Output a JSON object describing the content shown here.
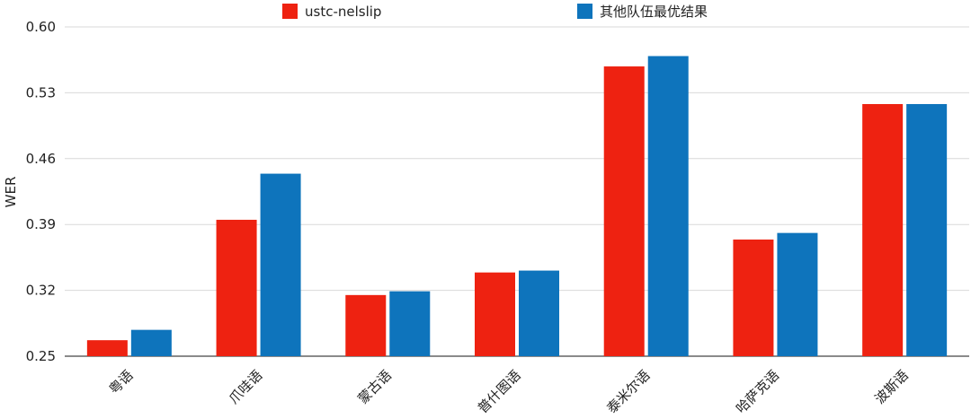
{
  "chart_data": {
    "type": "bar",
    "title": "",
    "xlabel": "",
    "ylabel": "WER",
    "ylim": [
      0.25,
      0.6
    ],
    "yticks": [
      "0.25",
      "0.32",
      "0.39",
      "0.46",
      "0.53",
      "0.60"
    ],
    "grid": true,
    "legend_position": "top",
    "categories": [
      "粤语",
      "爪哇语",
      "蒙古语",
      "普什图语",
      "泰米尔语",
      "哈萨克语",
      "波斯语"
    ],
    "series": [
      {
        "name": "ustc-nelslip",
        "color": "#ee2211",
        "values": [
          0.267,
          0.395,
          0.315,
          0.339,
          0.558,
          0.374,
          0.518
        ]
      },
      {
        "name": "其他队伍最优结果",
        "color": "#0e74bc",
        "values": [
          0.278,
          0.444,
          0.319,
          0.341,
          0.569,
          0.381,
          0.518
        ]
      }
    ]
  }
}
